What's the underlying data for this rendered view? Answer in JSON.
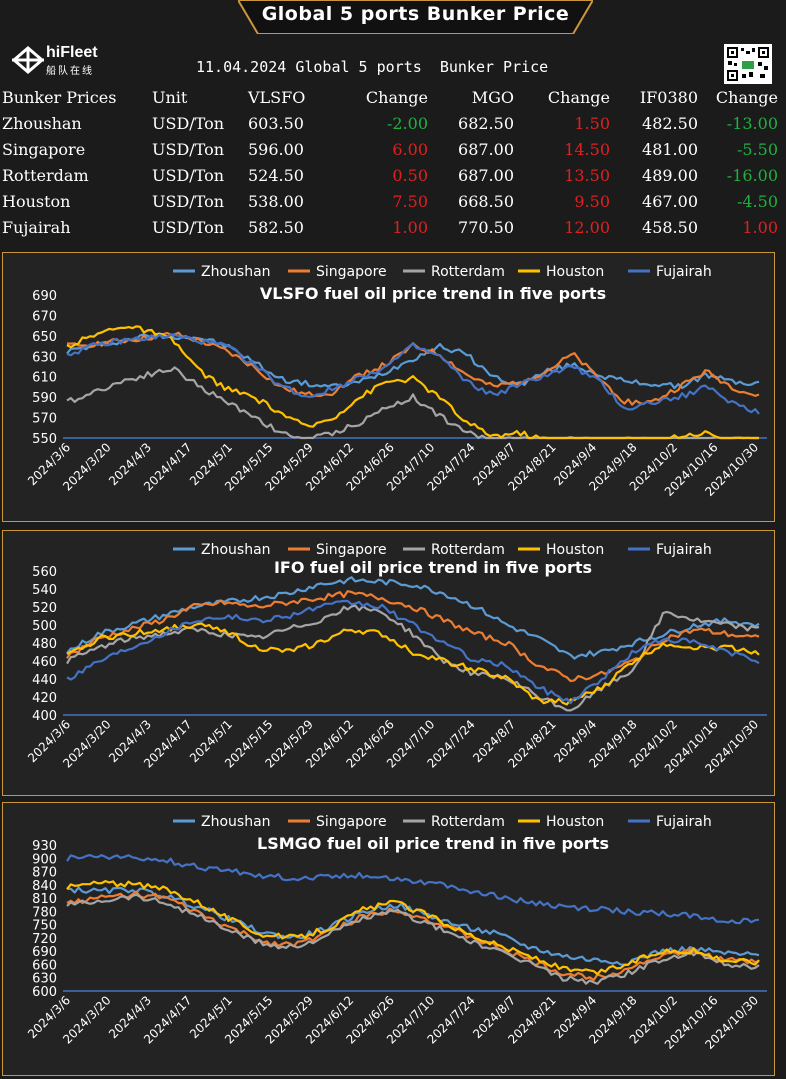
{
  "header": {
    "banner_title": "Global 5 ports  Bunker Price",
    "logo_text": "hiFleet",
    "logo_subtext": "船队在线",
    "subtitle": "11.04.2024 Global 5 ports  Bunker Price"
  },
  "table": {
    "headers": [
      "Bunker Prices",
      "Unit",
      "VLSFO",
      "Change",
      "MGO",
      "Change",
      "IF0380",
      "Change"
    ],
    "rows": [
      {
        "port": "Zhoushan",
        "unit": "USD/Ton",
        "vlsfo": "603.50",
        "vlsfo_change": "-2.00",
        "mgo": "682.50",
        "mgo_change": "1.50",
        "ifo": "482.50",
        "ifo_change": "-13.00",
        "dir": [
          "down",
          "up",
          "down"
        ]
      },
      {
        "port": "Singapore",
        "unit": "USD/Ton",
        "vlsfo": "596.00",
        "vlsfo_change": "6.00",
        "mgo": "687.00",
        "mgo_change": "14.50",
        "ifo": "481.00",
        "ifo_change": "-5.50",
        "dir": [
          "up",
          "up",
          "down"
        ]
      },
      {
        "port": "Rotterdam",
        "unit": "USD/Ton",
        "vlsfo": "524.50",
        "vlsfo_change": "0.50",
        "mgo": "687.00",
        "mgo_change": "13.50",
        "ifo": "489.00",
        "ifo_change": "-16.00",
        "dir": [
          "up",
          "up",
          "down"
        ]
      },
      {
        "port": "Houston",
        "unit": "USD/Ton",
        "vlsfo": "538.00",
        "vlsfo_change": "7.50",
        "mgo": "668.50",
        "mgo_change": "9.50",
        "ifo": "467.00",
        "ifo_change": "-4.50",
        "dir": [
          "up",
          "up",
          "down"
        ]
      },
      {
        "port": "Fujairah",
        "unit": "USD/Ton",
        "vlsfo": "582.50",
        "vlsfo_change": "1.00",
        "mgo": "770.50",
        "mgo_change": "12.00",
        "ifo": "458.50",
        "ifo_change": "1.00",
        "dir": [
          "up",
          "up",
          "up"
        ]
      }
    ]
  },
  "colors": {
    "up": "#e02020",
    "down": "#20b040",
    "accent": "#c8963c"
  },
  "chart_data": [
    {
      "type": "line",
      "title": "VLSFO fuel oil price trend in five ports",
      "xlabel": "",
      "ylabel": "",
      "ylim": [
        550,
        690
      ],
      "yticks": [
        550,
        570,
        590,
        610,
        630,
        650,
        670,
        690
      ],
      "x_tick_labels": [
        "2024/3/6",
        "2024/3/20",
        "2024/4/3",
        "2024/4/17",
        "2024/5/1",
        "2024/5/15",
        "2024/5/29",
        "2024/6/12",
        "2024/6/26",
        "2024/7/10",
        "2024/7/24",
        "2024/8/7",
        "2024/8/21",
        "2024/9/4",
        "2024/9/18",
        "2024/10/2",
        "2024/10/16",
        "2024/10/30"
      ],
      "grid": false,
      "legend": "top",
      "series": [
        {
          "name": "Zhoushan",
          "color": "#5b9bd5",
          "values": [
            635,
            640,
            645,
            650,
            650,
            648,
            640,
            625,
            608,
            603,
            600,
            605,
            615,
            628,
            640,
            632,
            610,
            602,
            615,
            622,
            612,
            605,
            603,
            600,
            612,
            605,
            603
          ]
        },
        {
          "name": "Singapore",
          "color": "#ed7d31",
          "values": [
            640,
            642,
            645,
            648,
            652,
            645,
            635,
            620,
            600,
            592,
            595,
            612,
            622,
            640,
            632,
            612,
            600,
            605,
            615,
            632,
            608,
            585,
            585,
            600,
            615,
            600,
            590
          ]
        },
        {
          "name": "Rotterdam",
          "color": "#a5a5a5",
          "values": [
            585,
            595,
            605,
            612,
            618,
            600,
            585,
            572,
            555,
            548,
            555,
            565,
            580,
            590,
            572,
            555,
            548,
            548,
            548,
            548,
            548,
            548,
            548,
            548,
            548,
            548,
            548
          ]
        },
        {
          "name": "Houston",
          "color": "#ffc000",
          "values": [
            640,
            650,
            660,
            655,
            645,
            615,
            598,
            590,
            575,
            560,
            570,
            590,
            605,
            608,
            590,
            565,
            552,
            555,
            548,
            548,
            548,
            548,
            548,
            552,
            555,
            548,
            548
          ]
        },
        {
          "name": "Fujairah",
          "color": "#4472c4",
          "values": [
            632,
            640,
            645,
            648,
            650,
            645,
            640,
            622,
            602,
            590,
            598,
            610,
            620,
            640,
            630,
            605,
            592,
            602,
            612,
            620,
            605,
            578,
            585,
            590,
            600,
            585,
            575
          ]
        }
      ]
    },
    {
      "type": "line",
      "title": "IFO fuel oil price trend in five ports",
      "xlabel": "",
      "ylabel": "",
      "ylim": [
        400,
        560
      ],
      "yticks": [
        400,
        420,
        440,
        460,
        480,
        500,
        520,
        540,
        560
      ],
      "x_tick_labels": [
        "2024/3/6",
        "2024/3/20",
        "2024/4/3",
        "2024/4/17",
        "2024/5/1",
        "2024/5/15",
        "2024/5/29",
        "2024/6/12",
        "2024/6/26",
        "2024/7/10",
        "2024/7/24",
        "2024/8/7",
        "2024/8/21",
        "2024/9/4",
        "2024/9/18",
        "2024/10/2",
        "2024/10/16",
        "2024/10/30"
      ],
      "grid": false,
      "legend": "top",
      "series": [
        {
          "name": "Zhoushan",
          "color": "#5b9bd5",
          "values": [
            470,
            490,
            500,
            510,
            520,
            525,
            530,
            535,
            545,
            550,
            548,
            545,
            535,
            520,
            500,
            485,
            465,
            470,
            480,
            490,
            500,
            505,
            500
          ]
        },
        {
          "name": "Singapore",
          "color": "#ed7d31",
          "values": [
            465,
            485,
            495,
            505,
            520,
            525,
            520,
            525,
            530,
            535,
            530,
            520,
            505,
            490,
            480,
            455,
            440,
            445,
            460,
            485,
            495,
            490,
            485
          ]
        },
        {
          "name": "Rotterdam",
          "color": "#a5a5a5",
          "values": [
            460,
            475,
            485,
            490,
            495,
            490,
            485,
            495,
            505,
            520,
            515,
            490,
            460,
            445,
            440,
            420,
            405,
            430,
            450,
            515,
            505,
            500,
            495
          ]
        },
        {
          "name": "Houston",
          "color": "#ffc000",
          "values": [
            465,
            485,
            490,
            495,
            500,
            495,
            475,
            470,
            480,
            495,
            490,
            470,
            460,
            450,
            440,
            415,
            415,
            430,
            460,
            480,
            475,
            475,
            470
          ]
        },
        {
          "name": "Fujairah",
          "color": "#4472c4",
          "values": [
            440,
            460,
            475,
            490,
            505,
            510,
            505,
            510,
            520,
            525,
            520,
            500,
            480,
            460,
            455,
            430,
            415,
            440,
            470,
            485,
            480,
            470,
            460
          ]
        }
      ]
    },
    {
      "type": "line",
      "title": "LSMGO fuel oil price trend in five ports",
      "xlabel": "",
      "ylabel": "",
      "ylim": [
        600,
        930
      ],
      "yticks": [
        600,
        630,
        660,
        690,
        720,
        750,
        780,
        810,
        840,
        870,
        900,
        930
      ],
      "x_tick_labels": [
        "2024/3/6",
        "2024/3/20",
        "2024/4/3",
        "2024/4/17",
        "2024/5/1",
        "2024/5/15",
        "2024/5/29",
        "2024/6/12",
        "2024/6/26",
        "2024/7/10",
        "2024/7/24",
        "2024/8/7",
        "2024/8/21",
        "2024/9/4",
        "2024/9/18",
        "2024/10/2",
        "2024/10/16",
        "2024/10/30"
      ],
      "grid": false,
      "legend": "top",
      "series": [
        {
          "name": "Zhoushan",
          "color": "#5b9bd5",
          "values": [
            830,
            825,
            830,
            815,
            790,
            760,
            730,
            720,
            745,
            780,
            795,
            770,
            745,
            730,
            700,
            680,
            670,
            665,
            690,
            695,
            685,
            680
          ]
        },
        {
          "name": "Singapore",
          "color": "#ed7d31",
          "values": [
            800,
            810,
            820,
            810,
            775,
            740,
            710,
            705,
            735,
            770,
            785,
            760,
            730,
            700,
            670,
            640,
            630,
            650,
            680,
            690,
            670,
            665
          ]
        },
        {
          "name": "Rotterdam",
          "color": "#a5a5a5",
          "values": [
            795,
            805,
            815,
            800,
            770,
            735,
            705,
            700,
            730,
            765,
            780,
            750,
            720,
            690,
            665,
            630,
            620,
            640,
            670,
            685,
            660,
            655
          ]
        },
        {
          "name": "Houston",
          "color": "#ffc000",
          "values": [
            835,
            845,
            840,
            830,
            800,
            760,
            725,
            720,
            745,
            785,
            800,
            770,
            735,
            705,
            680,
            650,
            640,
            660,
            690,
            690,
            670,
            665
          ]
        },
        {
          "name": "Fujairah",
          "color": "#4472c4",
          "values": [
            900,
            905,
            900,
            895,
            880,
            870,
            860,
            855,
            860,
            862,
            855,
            845,
            830,
            815,
            800,
            790,
            785,
            780,
            775,
            770,
            760,
            755
          ]
        }
      ]
    }
  ]
}
